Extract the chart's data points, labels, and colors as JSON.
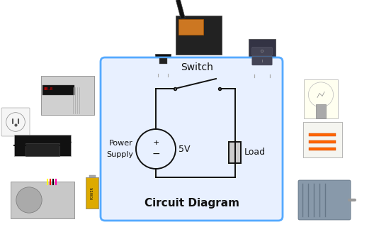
{
  "title": "Circuit Diagram",
  "switch_label": "Switch",
  "ps_label1": "Power",
  "ps_label2": "Supply",
  "ps_voltage": "5V",
  "load_label": "Load",
  "box_bg": "#e8f0ff",
  "box_edge": "#55aaff",
  "circuit_color": "#111111",
  "text_color": "#111111",
  "fig_bg": "#ffffff",
  "figw": 5.28,
  "figh": 3.44,
  "dpi": 100
}
